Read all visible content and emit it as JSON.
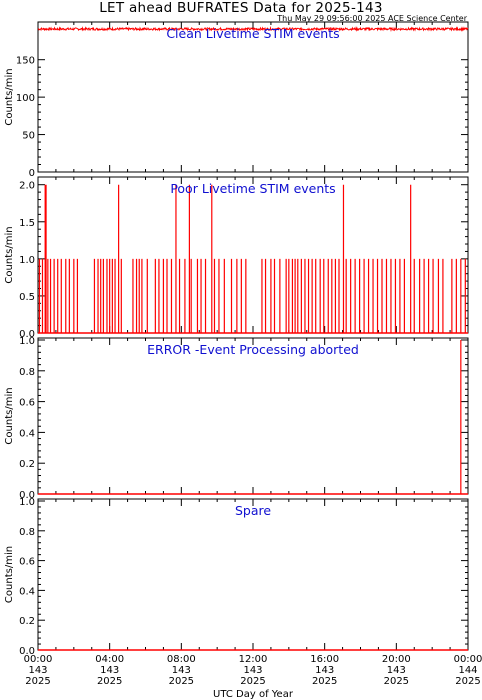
{
  "header": {
    "title": "LET ahead BUFRATES Data for 2025-143",
    "stamp": "Thu May 29 09:56:00 2025 ACE Science Center"
  },
  "colors": {
    "data": "#ff0000",
    "panel_title": "#1010d0",
    "axes": "#000000"
  },
  "chart_data": {
    "type": "line",
    "xlabel": "UTC Day of Year",
    "x_unit": "hours",
    "xlim": [
      0,
      24
    ],
    "x_ticks": [
      {
        "x": 0,
        "time": "00:00",
        "doy": "143",
        "year": "2025"
      },
      {
        "x": 4,
        "time": "04:00",
        "doy": "143",
        "year": "2025"
      },
      {
        "x": 8,
        "time": "08:00",
        "doy": "143",
        "year": "2025"
      },
      {
        "x": 12,
        "time": "12:00",
        "doy": "143",
        "year": "2025"
      },
      {
        "x": 16,
        "time": "16:00",
        "doy": "143",
        "year": "2025"
      },
      {
        "x": 20,
        "time": "20:00",
        "doy": "143",
        "year": "2025"
      },
      {
        "x": 24,
        "time": "00:00",
        "doy": "144",
        "year": "2025"
      }
    ],
    "panels": [
      {
        "title": "Clean Livetime STIM events",
        "ylabel": "Counts/min",
        "ylim": [
          0,
          195
        ],
        "yticks": [
          0,
          50,
          100,
          150
        ],
        "ytick_labels": [
          "0",
          "50",
          "100",
          "150"
        ],
        "series": {
          "baseline": 191,
          "jitter": 1.5,
          "description_free": true
        }
      },
      {
        "title": "Poor Livetime STIM events",
        "ylabel": "Counts/min",
        "ylim": [
          0,
          2.05
        ],
        "yticks": [
          0.0,
          0.5,
          1.0,
          1.5,
          2.0
        ],
        "ytick_labels": [
          "0.0",
          "0.5",
          "1.0",
          "1.5",
          "2.0"
        ],
        "spikes": [
          {
            "x": 0.08,
            "y": 1
          },
          {
            "x": 0.25,
            "y": 1
          },
          {
            "x": 0.4,
            "y": 2
          },
          {
            "x": 0.45,
            "y": 2
          },
          {
            "x": 0.55,
            "y": 1
          },
          {
            "x": 0.7,
            "y": 1
          },
          {
            "x": 0.9,
            "y": 1
          },
          {
            "x": 1.1,
            "y": 1
          },
          {
            "x": 1.3,
            "y": 1
          },
          {
            "x": 1.55,
            "y": 1
          },
          {
            "x": 1.75,
            "y": 1
          },
          {
            "x": 2.0,
            "y": 1
          },
          {
            "x": 2.2,
            "y": 1
          },
          {
            "x": 3.15,
            "y": 1
          },
          {
            "x": 3.35,
            "y": 1
          },
          {
            "x": 3.5,
            "y": 1
          },
          {
            "x": 3.65,
            "y": 1
          },
          {
            "x": 3.85,
            "y": 1
          },
          {
            "x": 4.0,
            "y": 1
          },
          {
            "x": 4.15,
            "y": 1
          },
          {
            "x": 4.3,
            "y": 1
          },
          {
            "x": 4.5,
            "y": 2
          },
          {
            "x": 4.65,
            "y": 1
          },
          {
            "x": 5.3,
            "y": 1
          },
          {
            "x": 5.5,
            "y": 1
          },
          {
            "x": 5.65,
            "y": 1
          },
          {
            "x": 5.8,
            "y": 1
          },
          {
            "x": 6.1,
            "y": 1
          },
          {
            "x": 6.55,
            "y": 1
          },
          {
            "x": 6.75,
            "y": 1
          },
          {
            "x": 7.0,
            "y": 1
          },
          {
            "x": 7.2,
            "y": 1
          },
          {
            "x": 7.45,
            "y": 1
          },
          {
            "x": 7.7,
            "y": 2
          },
          {
            "x": 7.9,
            "y": 1
          },
          {
            "x": 8.2,
            "y": 1
          },
          {
            "x": 8.45,
            "y": 2
          },
          {
            "x": 8.55,
            "y": 1
          },
          {
            "x": 8.9,
            "y": 1
          },
          {
            "x": 9.1,
            "y": 1
          },
          {
            "x": 9.35,
            "y": 1
          },
          {
            "x": 9.7,
            "y": 2
          },
          {
            "x": 9.85,
            "y": 1
          },
          {
            "x": 10.1,
            "y": 1
          },
          {
            "x": 10.4,
            "y": 1
          },
          {
            "x": 10.8,
            "y": 1
          },
          {
            "x": 11.1,
            "y": 1
          },
          {
            "x": 11.35,
            "y": 1
          },
          {
            "x": 11.6,
            "y": 1
          },
          {
            "x": 12.5,
            "y": 1
          },
          {
            "x": 12.7,
            "y": 1
          },
          {
            "x": 13.0,
            "y": 1
          },
          {
            "x": 13.2,
            "y": 1
          },
          {
            "x": 13.5,
            "y": 1
          },
          {
            "x": 13.85,
            "y": 1
          },
          {
            "x": 14.0,
            "y": 1
          },
          {
            "x": 14.2,
            "y": 1
          },
          {
            "x": 14.35,
            "y": 1
          },
          {
            "x": 14.5,
            "y": 1
          },
          {
            "x": 14.7,
            "y": 1
          },
          {
            "x": 14.9,
            "y": 1
          },
          {
            "x": 15.1,
            "y": 1
          },
          {
            "x": 15.3,
            "y": 1
          },
          {
            "x": 15.5,
            "y": 1
          },
          {
            "x": 15.75,
            "y": 1
          },
          {
            "x": 15.95,
            "y": 1
          },
          {
            "x": 16.2,
            "y": 1
          },
          {
            "x": 16.4,
            "y": 1
          },
          {
            "x": 16.6,
            "y": 1
          },
          {
            "x": 16.8,
            "y": 1
          },
          {
            "x": 17.05,
            "y": 2
          },
          {
            "x": 17.2,
            "y": 1
          },
          {
            "x": 17.45,
            "y": 1
          },
          {
            "x": 17.7,
            "y": 1
          },
          {
            "x": 17.95,
            "y": 1
          },
          {
            "x": 18.2,
            "y": 1
          },
          {
            "x": 18.45,
            "y": 1
          },
          {
            "x": 18.7,
            "y": 1
          },
          {
            "x": 18.95,
            "y": 1
          },
          {
            "x": 19.2,
            "y": 1
          },
          {
            "x": 19.45,
            "y": 1
          },
          {
            "x": 19.7,
            "y": 1
          },
          {
            "x": 19.95,
            "y": 1
          },
          {
            "x": 20.2,
            "y": 1
          },
          {
            "x": 20.45,
            "y": 1
          },
          {
            "x": 20.8,
            "y": 2
          },
          {
            "x": 21.0,
            "y": 1
          },
          {
            "x": 21.3,
            "y": 1
          },
          {
            "x": 21.55,
            "y": 1
          },
          {
            "x": 21.8,
            "y": 1
          },
          {
            "x": 22.05,
            "y": 1
          },
          {
            "x": 22.35,
            "y": 1
          },
          {
            "x": 22.6,
            "y": 1
          },
          {
            "x": 23.1,
            "y": 1
          },
          {
            "x": 23.35,
            "y": 1
          },
          {
            "x": 23.6,
            "y": 1
          },
          {
            "x": 23.85,
            "y": 1
          }
        ]
      },
      {
        "title": "ERROR -Event Processing aborted",
        "ylabel": "Counts/min",
        "ylim": [
          0,
          1.0
        ],
        "yticks": [
          0.0,
          0.2,
          0.4,
          0.6,
          0.8,
          1.0
        ],
        "ytick_labels": [
          "0.0",
          "0.2",
          "0.4",
          "0.6",
          "0.8",
          "1.0"
        ],
        "spikes": [
          {
            "x": 23.6,
            "y": 1
          }
        ]
      },
      {
        "title": "Spare",
        "ylabel": "Counts/min",
        "ylim": [
          0,
          1.0
        ],
        "yticks": [
          0.0,
          0.2,
          0.4,
          0.6,
          0.8,
          1.0
        ],
        "ytick_labels": [
          "0.0",
          "0.2",
          "0.4",
          "0.6",
          "0.8",
          "1.0"
        ],
        "spikes": []
      }
    ]
  }
}
